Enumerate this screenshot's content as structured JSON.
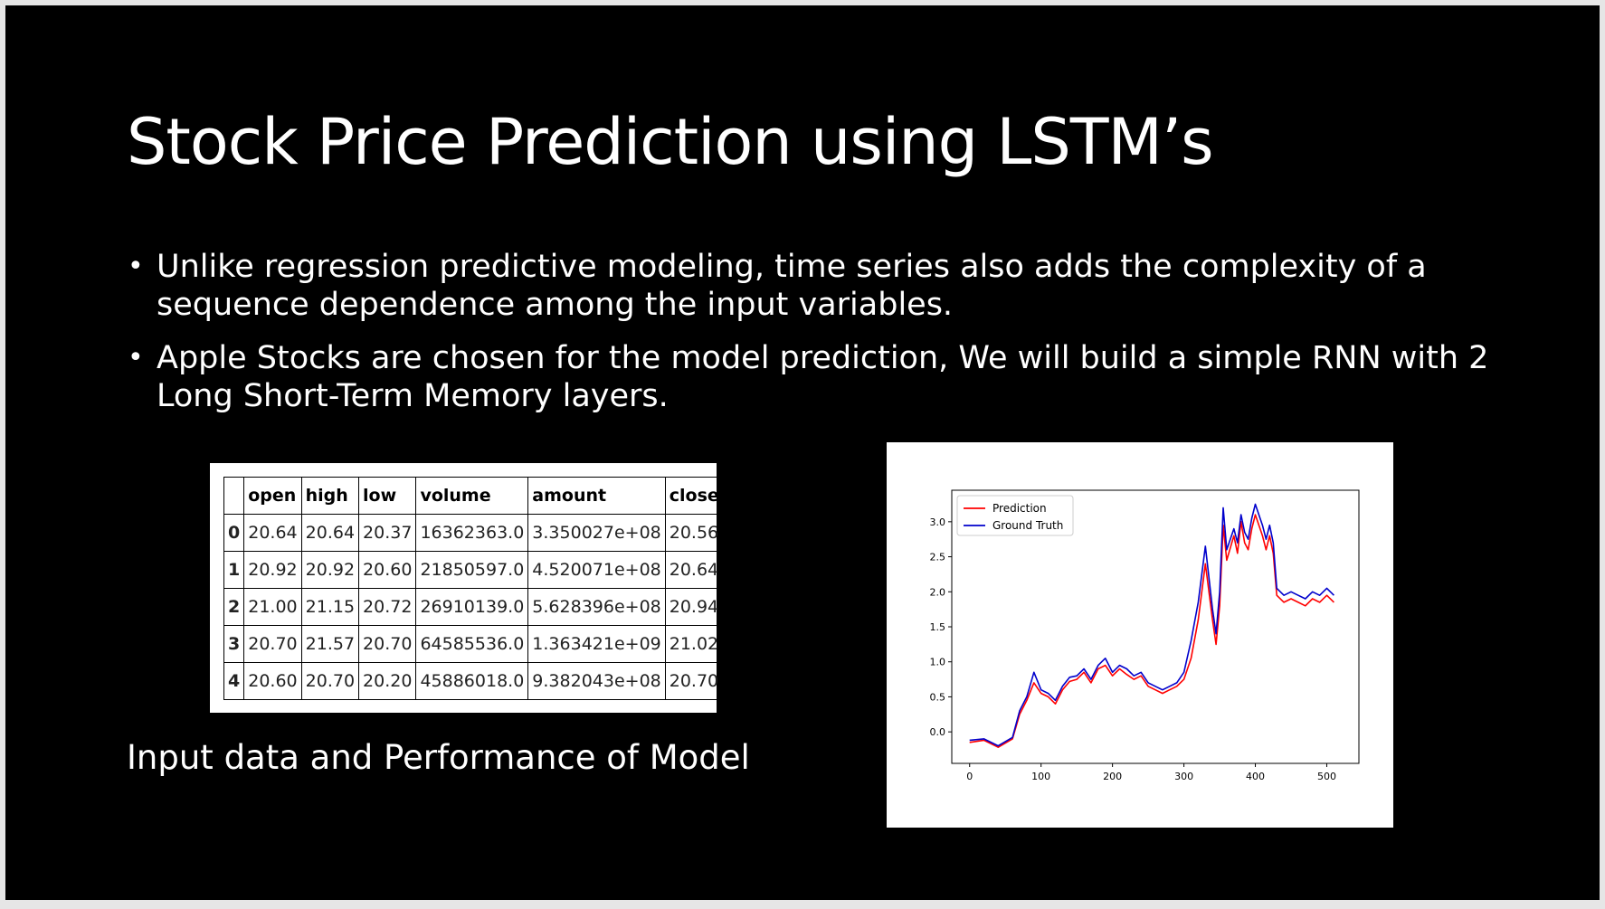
{
  "slide": {
    "title": "Stock Price Prediction using LSTM’s",
    "bullets": [
      "Unlike regression predictive modeling, time series also adds the complexity of a sequence dependence among the input variables.",
      "Apple Stocks are chosen for the model prediction, We will build a simple RNN with 2 Long Short-Term Memory layers."
    ],
    "caption": "Input data and Performance of Model"
  },
  "table": {
    "columns": [
      "",
      "open",
      "high",
      "low",
      "volume",
      "amount",
      "close"
    ],
    "rows": [
      [
        "0",
        "20.64",
        "20.64",
        "20.37",
        "16362363.0",
        "3.350027e+08",
        "20.56"
      ],
      [
        "1",
        "20.92",
        "20.92",
        "20.60",
        "21850597.0",
        "4.520071e+08",
        "20.64"
      ],
      [
        "2",
        "21.00",
        "21.15",
        "20.72",
        "26910139.0",
        "5.628396e+08",
        "20.94"
      ],
      [
        "3",
        "20.70",
        "21.57",
        "20.70",
        "64585536.0",
        "1.363421e+09",
        "21.02"
      ],
      [
        "4",
        "20.60",
        "20.70",
        "20.20",
        "45886018.0",
        "9.382043e+08",
        "20.70"
      ]
    ]
  },
  "chart_data": {
    "type": "line",
    "xlim": [
      -25,
      545
    ],
    "ylim": [
      -0.45,
      3.45
    ],
    "xticks": [
      0,
      100,
      200,
      300,
      400,
      500
    ],
    "yticks": [
      0.0,
      0.5,
      1.0,
      1.5,
      2.0,
      2.5,
      3.0
    ],
    "xtick_labels": [
      "0",
      "100",
      "200",
      "300",
      "400",
      "500"
    ],
    "ytick_labels": [
      "0.0",
      "0.5",
      "1.0",
      "1.5",
      "2.0",
      "2.5",
      "3.0"
    ],
    "legend_position": "top-left",
    "grid": false,
    "x": [
      0,
      20,
      40,
      60,
      70,
      80,
      90,
      100,
      110,
      120,
      130,
      140,
      150,
      160,
      170,
      180,
      190,
      200,
      210,
      220,
      230,
      240,
      250,
      260,
      270,
      280,
      290,
      300,
      310,
      320,
      330,
      340,
      345,
      350,
      355,
      360,
      370,
      375,
      380,
      385,
      390,
      395,
      400,
      410,
      415,
      420,
      425,
      430,
      440,
      450,
      460,
      470,
      480,
      490,
      500,
      510
    ],
    "series": [
      {
        "name": "Prediction",
        "color": "#ff0000",
        "values": [
          -0.15,
          -0.12,
          -0.22,
          -0.1,
          0.25,
          0.45,
          0.7,
          0.55,
          0.5,
          0.4,
          0.6,
          0.72,
          0.75,
          0.85,
          0.7,
          0.9,
          0.95,
          0.8,
          0.9,
          0.82,
          0.75,
          0.8,
          0.65,
          0.6,
          0.55,
          0.6,
          0.65,
          0.75,
          1.05,
          1.6,
          2.4,
          1.6,
          1.25,
          1.8,
          2.95,
          2.45,
          2.8,
          2.55,
          3.0,
          2.7,
          2.6,
          2.9,
          3.1,
          2.8,
          2.6,
          2.8,
          2.55,
          1.95,
          1.85,
          1.9,
          1.85,
          1.8,
          1.9,
          1.85,
          1.95,
          1.85
        ]
      },
      {
        "name": "Ground Truth",
        "color": "#0000cc",
        "values": [
          -0.12,
          -0.1,
          -0.2,
          -0.08,
          0.3,
          0.5,
          0.85,
          0.6,
          0.55,
          0.45,
          0.65,
          0.78,
          0.8,
          0.9,
          0.75,
          0.95,
          1.05,
          0.85,
          0.95,
          0.9,
          0.8,
          0.85,
          0.7,
          0.65,
          0.6,
          0.65,
          0.7,
          0.85,
          1.3,
          1.85,
          2.65,
          1.75,
          1.4,
          2.0,
          3.2,
          2.6,
          2.9,
          2.7,
          3.1,
          2.85,
          2.75,
          3.05,
          3.25,
          2.95,
          2.75,
          2.95,
          2.7,
          2.05,
          1.95,
          2.0,
          1.95,
          1.9,
          2.0,
          1.95,
          2.05,
          1.95
        ]
      }
    ]
  }
}
